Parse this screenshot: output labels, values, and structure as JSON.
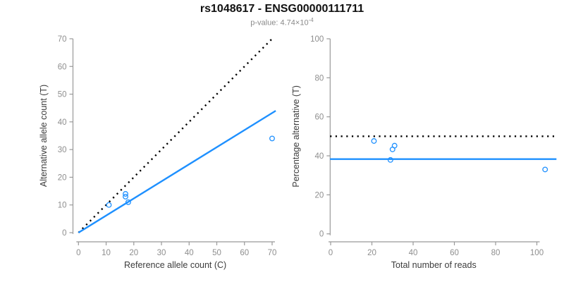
{
  "header": {
    "title": "rs1048617 - ENSG00000111711",
    "p_label": "p-value:",
    "p_mantissa": "4.74",
    "p_times": "×10",
    "p_exponent": "-4"
  },
  "colors": {
    "accent_blue": "#1E90FF",
    "dotted_black": "#000000",
    "axis_gray": "#999999",
    "tick_label_gray": "#8e8e8e",
    "axis_title_gray": "#3c3c3c",
    "title_black": "#111111",
    "subtitle_gray": "#8a8a8a"
  },
  "chart_data": [
    {
      "type": "scatter",
      "panel": "left",
      "xlabel": "Reference allele count (C)",
      "ylabel": "Alternative allele count (T)",
      "xlim": [
        0,
        70
      ],
      "ylim": [
        0,
        70
      ],
      "xticks": [
        0,
        10,
        20,
        30,
        40,
        50,
        60,
        70
      ],
      "yticks": [
        0,
        10,
        20,
        30,
        40,
        50,
        60,
        70
      ],
      "grid": false,
      "point_style": "open-circle",
      "points": [
        [
          11,
          10
        ],
        [
          17,
          14
        ],
        [
          17,
          13
        ],
        [
          18,
          11
        ],
        [
          70,
          34
        ]
      ],
      "lines": [
        {
          "name": "identity-line",
          "style": "dotted",
          "color": "#000000",
          "from": [
            0,
            0
          ],
          "to": [
            70,
            70
          ]
        },
        {
          "name": "fit-line",
          "style": "solid",
          "color": "#1E90FF",
          "from": [
            0,
            0
          ],
          "to": [
            71.3,
            44.0
          ]
        }
      ]
    },
    {
      "type": "scatter",
      "panel": "right",
      "xlabel": "Total number of reads",
      "ylabel": "Percentage alternative (T)",
      "xlim": [
        0,
        105
      ],
      "ylim": [
        0,
        100
      ],
      "xticks": [
        0,
        20,
        40,
        60,
        80,
        100
      ],
      "yticks": [
        0,
        20,
        40,
        60,
        80,
        100
      ],
      "grid": false,
      "point_style": "open-circle",
      "points": [
        [
          21,
          47.6
        ],
        [
          31,
          45.2
        ],
        [
          30,
          43.3
        ],
        [
          29,
          37.9
        ],
        [
          104,
          33
        ]
      ],
      "lines": [
        {
          "name": "expected-50pct-line",
          "style": "dotted",
          "color": "#000000",
          "from": [
            -0.3,
            50
          ],
          "to": [
            109.5,
            50
          ]
        },
        {
          "name": "fit-line",
          "style": "solid",
          "color": "#1E90FF",
          "from": [
            -0.3,
            38.3
          ],
          "to": [
            109.5,
            38.3
          ]
        }
      ]
    }
  ]
}
